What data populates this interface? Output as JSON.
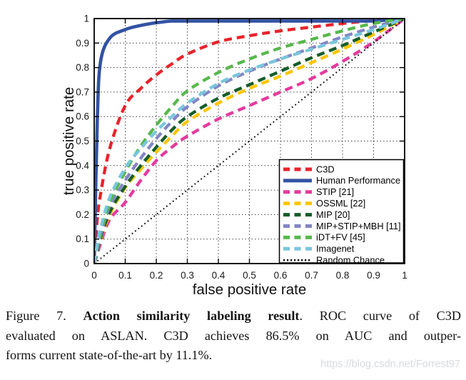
{
  "figure": {
    "x_ticks": [
      "0",
      "0.1",
      "0.2",
      "0.3",
      "0.4",
      "0.5",
      "0.6",
      "0.7",
      "0.8",
      "0.9",
      "1"
    ],
    "y_ticks": [
      "0",
      "0.1",
      "0.2",
      "0.3",
      "0.4",
      "0.5",
      "0.6",
      "0.7",
      "0.8",
      "0.9",
      "1"
    ],
    "axis_color": "#000000",
    "grid_color": "#222222",
    "background": "#ffffff"
  },
  "chart_data": {
    "type": "line",
    "title": "",
    "xlabel": "false positive rate",
    "ylabel": "true positive rate",
    "xlim": [
      0,
      1
    ],
    "ylim": [
      0,
      1
    ],
    "grid": true,
    "legend_position": "lower right",
    "x": [
      0,
      0.01,
      0.02,
      0.05,
      0.1,
      0.15,
      0.2,
      0.25,
      0.3,
      0.4,
      0.5,
      0.6,
      0.7,
      0.8,
      0.9,
      1
    ],
    "series": [
      {
        "name": "C3D",
        "color": "#e8232a",
        "style": "dashed",
        "width": 4.3,
        "values": [
          0,
          0.18,
          0.28,
          0.47,
          0.645,
          0.715,
          0.77,
          0.815,
          0.855,
          0.905,
          0.93,
          0.95,
          0.965,
          0.98,
          0.992,
          1
        ]
      },
      {
        "name": "Human Performance",
        "color": "#3252a3",
        "style": "solid",
        "width": 4.6,
        "values": [
          0,
          0.58,
          0.82,
          0.92,
          0.955,
          0.972,
          0.983,
          0.99,
          0.99,
          0.99,
          0.99,
          0.99,
          0.99,
          0.99,
          0.99,
          1
        ]
      },
      {
        "name": "STIP [21]",
        "color": "#e43a9d",
        "style": "dashed",
        "width": 4.3,
        "values": [
          0,
          0.04,
          0.08,
          0.18,
          0.25,
          0.34,
          0.42,
          0.475,
          0.52,
          0.59,
          0.645,
          0.7,
          0.755,
          0.825,
          0.905,
          1
        ]
      },
      {
        "name": "OSSML [22]",
        "color": "#fdc500",
        "style": "dashed",
        "width": 4.3,
        "values": [
          0,
          0.05,
          0.095,
          0.2,
          0.31,
          0.385,
          0.455,
          0.52,
          0.58,
          0.655,
          0.715,
          0.765,
          0.82,
          0.875,
          0.935,
          1
        ]
      },
      {
        "name": "MIP [20]",
        "color": "#155d2b",
        "style": "dashed",
        "width": 4.3,
        "values": [
          0,
          0.05,
          0.1,
          0.21,
          0.315,
          0.4,
          0.475,
          0.545,
          0.6,
          0.675,
          0.73,
          0.785,
          0.84,
          0.89,
          0.945,
          1
        ]
      },
      {
        "name": "MIP+STIP+MBH [11]",
        "color": "#8286c4",
        "style": "dashed",
        "width": 4.3,
        "values": [
          0,
          0.06,
          0.11,
          0.235,
          0.34,
          0.43,
          0.51,
          0.58,
          0.64,
          0.725,
          0.785,
          0.835,
          0.88,
          0.925,
          0.965,
          1
        ]
      },
      {
        "name": "iDT+FV [45]",
        "color": "#57b84c",
        "style": "dashed",
        "width": 4.3,
        "values": [
          0,
          0.07,
          0.125,
          0.25,
          0.375,
          0.48,
          0.565,
          0.64,
          0.705,
          0.78,
          0.835,
          0.88,
          0.915,
          0.95,
          0.98,
          1
        ]
      },
      {
        "name": "Imagenet",
        "color": "#79c6dd",
        "style": "dashed",
        "width": 4.3,
        "values": [
          0,
          0.08,
          0.14,
          0.27,
          0.39,
          0.47,
          0.54,
          0.6,
          0.655,
          0.735,
          0.79,
          0.835,
          0.875,
          0.915,
          0.955,
          1
        ]
      },
      {
        "name": "Random Chance",
        "color": "#111111",
        "style": "dotted",
        "width": 2,
        "values": [
          0,
          0.01,
          0.02,
          0.05,
          0.1,
          0.15,
          0.2,
          0.25,
          0.3,
          0.4,
          0.5,
          0.6,
          0.7,
          0.8,
          0.9,
          1
        ]
      }
    ]
  },
  "caption": {
    "line1_prefix": "Figure 7. ",
    "line1_bold": "Action similarity labeling result",
    "line1_rest": ". ROC curve of C3D",
    "line2": "evaluated on ASLAN. C3D achieves 86.5% on AUC and outper-",
    "line3": "forms current state-of-the-art by 11.1%."
  },
  "watermark": "https://blog.csdn.net/Forrest97"
}
